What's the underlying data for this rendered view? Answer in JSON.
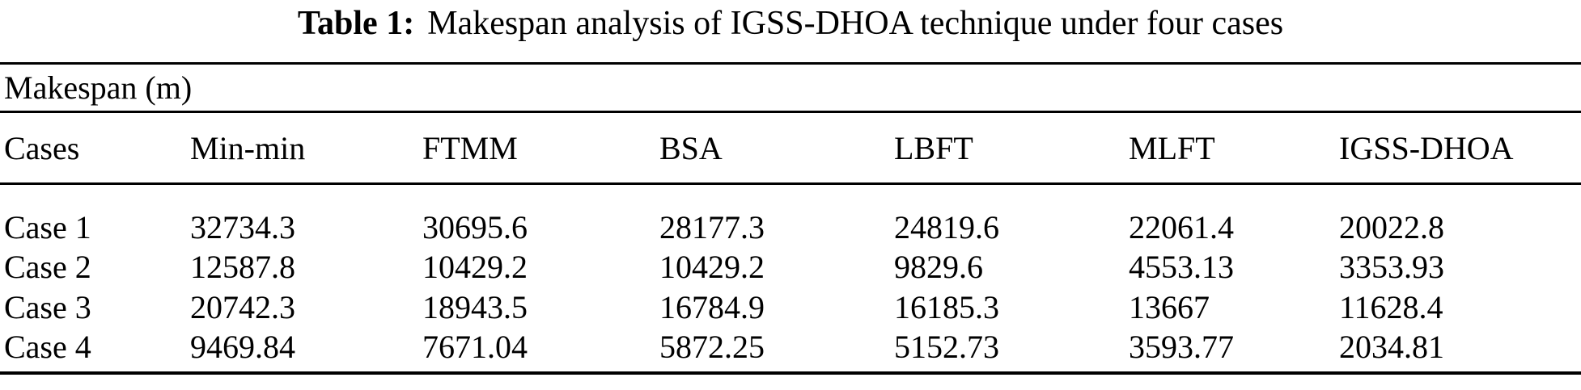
{
  "caption": {
    "label": "Table 1:",
    "text": "Makespan analysis of IGSS-DHOA technique under four cases"
  },
  "table": {
    "group_header": "Makespan (m)",
    "columns": [
      "Cases",
      "Min-min",
      "FTMM",
      "BSA",
      "LBFT",
      "MLFT",
      "IGSS-DHOA"
    ],
    "rows": [
      {
        "cells": [
          "Case 1",
          "32734.3",
          "30695.6",
          "28177.3",
          "24819.6",
          "22061.4",
          "20022.8"
        ]
      },
      {
        "cells": [
          "Case 2",
          "12587.8",
          "10429.2",
          "10429.2",
          "9829.6",
          "4553.13",
          "3353.93"
        ]
      },
      {
        "cells": [
          "Case 3",
          "20742.3",
          "18943.5",
          "16784.9",
          "16185.3",
          "13667",
          "11628.4"
        ]
      },
      {
        "cells": [
          "Case 4",
          "9469.84",
          "7671.04",
          "5872.25",
          "5152.73",
          "3593.77",
          "2034.81"
        ]
      }
    ]
  },
  "colors": {
    "background": "#ffffff",
    "text": "#000000",
    "rule": "#000000"
  }
}
